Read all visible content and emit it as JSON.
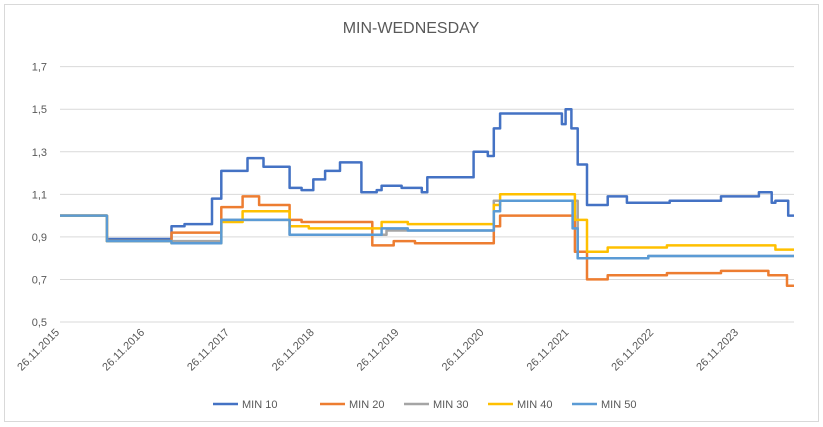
{
  "chart_data": {
    "type": "line",
    "title": "MIN-WEDNESDAY",
    "xlabel": "",
    "ylabel": "",
    "ylim": [
      0.5,
      1.75
    ],
    "y_ticks": [
      "0,5",
      "0,7",
      "0,9",
      "1,1",
      "1,3",
      "1,5",
      "1,7"
    ],
    "x_ticks": [
      "26.11.2015",
      "26.11.2016",
      "26.11.2017",
      "26.11.2018",
      "26.11.2019",
      "26.11.2020",
      "26.11.2021",
      "26.11.2022",
      "26.11.2023"
    ],
    "x_domain": [
      "2015-11-26",
      "2024-07-20"
    ],
    "grid": "horizontal",
    "legend_position": "bottom",
    "series": [
      {
        "name": "MIN 10",
        "color": "#4472c4",
        "points": [
          [
            "2015-11-26",
            1.0
          ],
          [
            "2016-06-15",
            1.0
          ],
          [
            "2016-06-15",
            0.89
          ],
          [
            "2017-03-20",
            0.89
          ],
          [
            "2017-03-20",
            0.95
          ],
          [
            "2017-05-15",
            0.95
          ],
          [
            "2017-05-15",
            0.96
          ],
          [
            "2017-09-10",
            0.96
          ],
          [
            "2017-09-10",
            1.08
          ],
          [
            "2017-10-20",
            1.08
          ],
          [
            "2017-10-20",
            1.21
          ],
          [
            "2018-02-10",
            1.21
          ],
          [
            "2018-02-10",
            1.27
          ],
          [
            "2018-04-20",
            1.27
          ],
          [
            "2018-04-20",
            1.23
          ],
          [
            "2018-08-10",
            1.23
          ],
          [
            "2018-08-10",
            1.13
          ],
          [
            "2018-10-01",
            1.13
          ],
          [
            "2018-10-01",
            1.12
          ],
          [
            "2018-11-20",
            1.12
          ],
          [
            "2018-11-20",
            1.17
          ],
          [
            "2019-01-10",
            1.17
          ],
          [
            "2019-01-10",
            1.21
          ],
          [
            "2019-03-15",
            1.21
          ],
          [
            "2019-03-15",
            1.25
          ],
          [
            "2019-06-15",
            1.25
          ],
          [
            "2019-06-15",
            1.11
          ],
          [
            "2019-08-20",
            1.11
          ],
          [
            "2019-08-20",
            1.12
          ],
          [
            "2019-09-10",
            1.12
          ],
          [
            "2019-09-10",
            1.14
          ],
          [
            "2019-12-05",
            1.14
          ],
          [
            "2019-12-05",
            1.13
          ],
          [
            "2020-03-01",
            1.13
          ],
          [
            "2020-03-01",
            1.11
          ],
          [
            "2020-03-25",
            1.11
          ],
          [
            "2020-03-25",
            1.18
          ],
          [
            "2020-10-10",
            1.18
          ],
          [
            "2020-10-10",
            1.3
          ],
          [
            "2020-12-10",
            1.3
          ],
          [
            "2020-12-10",
            1.28
          ],
          [
            "2021-01-05",
            1.28
          ],
          [
            "2021-01-05",
            1.41
          ],
          [
            "2021-02-01",
            1.41
          ],
          [
            "2021-02-01",
            1.48
          ],
          [
            "2021-10-25",
            1.48
          ],
          [
            "2021-10-25",
            1.43
          ],
          [
            "2021-11-10",
            1.43
          ],
          [
            "2021-11-10",
            1.5
          ],
          [
            "2021-12-05",
            1.5
          ],
          [
            "2021-12-05",
            1.41
          ],
          [
            "2022-01-01",
            1.41
          ],
          [
            "2022-01-01",
            1.24
          ],
          [
            "2022-02-10",
            1.24
          ],
          [
            "2022-02-10",
            1.05
          ],
          [
            "2022-05-10",
            1.05
          ],
          [
            "2022-05-10",
            1.09
          ],
          [
            "2022-08-01",
            1.09
          ],
          [
            "2022-08-01",
            1.06
          ],
          [
            "2023-02-01",
            1.06
          ],
          [
            "2023-02-01",
            1.07
          ],
          [
            "2023-09-10",
            1.07
          ],
          [
            "2023-09-10",
            1.09
          ],
          [
            "2024-02-20",
            1.09
          ],
          [
            "2024-02-20",
            1.11
          ],
          [
            "2024-04-15",
            1.11
          ],
          [
            "2024-04-15",
            1.06
          ],
          [
            "2024-05-01",
            1.06
          ],
          [
            "2024-05-01",
            1.07
          ],
          [
            "2024-06-25",
            1.07
          ],
          [
            "2024-06-25",
            1.0
          ],
          [
            "2024-07-20",
            1.0
          ]
        ]
      },
      {
        "name": "MIN 20",
        "color": "#ed7d31",
        "points": [
          [
            "2015-11-26",
            1.0
          ],
          [
            "2016-06-15",
            1.0
          ],
          [
            "2016-06-15",
            0.88
          ],
          [
            "2017-03-20",
            0.88
          ],
          [
            "2017-03-20",
            0.92
          ],
          [
            "2017-10-20",
            0.92
          ],
          [
            "2017-10-20",
            1.04
          ],
          [
            "2018-01-20",
            1.04
          ],
          [
            "2018-01-20",
            1.09
          ],
          [
            "2018-04-01",
            1.09
          ],
          [
            "2018-04-01",
            1.05
          ],
          [
            "2018-08-10",
            1.05
          ],
          [
            "2018-08-10",
            0.98
          ],
          [
            "2018-10-01",
            0.98
          ],
          [
            "2018-10-01",
            0.97
          ],
          [
            "2019-08-01",
            0.97
          ],
          [
            "2019-08-01",
            0.86
          ],
          [
            "2019-11-01",
            0.86
          ],
          [
            "2019-11-01",
            0.88
          ],
          [
            "2020-02-01",
            0.88
          ],
          [
            "2020-02-01",
            0.87
          ],
          [
            "2021-01-05",
            0.87
          ],
          [
            "2021-01-05",
            0.95
          ],
          [
            "2021-02-01",
            0.95
          ],
          [
            "2021-02-01",
            1.0
          ],
          [
            "2021-12-20",
            1.0
          ],
          [
            "2021-12-20",
            0.83
          ],
          [
            "2022-02-10",
            0.83
          ],
          [
            "2022-02-10",
            0.7
          ],
          [
            "2022-05-10",
            0.7
          ],
          [
            "2022-05-10",
            0.72
          ],
          [
            "2023-01-20",
            0.72
          ],
          [
            "2023-01-20",
            0.73
          ],
          [
            "2023-09-10",
            0.73
          ],
          [
            "2023-09-10",
            0.74
          ],
          [
            "2024-04-01",
            0.74
          ],
          [
            "2024-04-01",
            0.72
          ],
          [
            "2024-06-20",
            0.72
          ],
          [
            "2024-06-20",
            0.67
          ],
          [
            "2024-07-20",
            0.67
          ]
        ]
      },
      {
        "name": "MIN 30",
        "color": "#a5a5a5",
        "points": [
          [
            "2015-11-26",
            1.0
          ],
          [
            "2016-06-15",
            1.0
          ],
          [
            "2016-06-15",
            0.88
          ],
          [
            "2017-10-20",
            0.88
          ],
          [
            "2017-10-20",
            0.98
          ],
          [
            "2018-08-10",
            0.98
          ],
          [
            "2018-08-10",
            0.91
          ],
          [
            "2019-10-01",
            0.91
          ],
          [
            "2019-10-01",
            0.93
          ],
          [
            "2021-01-05",
            0.93
          ],
          [
            "2021-01-05",
            1.07
          ],
          [
            "2022-01-01",
            1.07
          ],
          [
            "2022-01-01",
            0.8
          ],
          [
            "2022-11-01",
            0.8
          ],
          [
            "2022-11-01",
            0.81
          ],
          [
            "2024-07-20",
            0.81
          ]
        ]
      },
      {
        "name": "MIN 40",
        "color": "#ffc000",
        "points": [
          [
            "2015-11-26",
            1.0
          ],
          [
            "2016-06-15",
            1.0
          ],
          [
            "2016-06-15",
            0.88
          ],
          [
            "2017-03-20",
            0.88
          ],
          [
            "2017-03-20",
            0.87
          ],
          [
            "2017-10-20",
            0.87
          ],
          [
            "2017-10-20",
            0.97
          ],
          [
            "2018-01-20",
            0.97
          ],
          [
            "2018-01-20",
            1.02
          ],
          [
            "2018-08-10",
            1.02
          ],
          [
            "2018-08-10",
            0.95
          ],
          [
            "2018-11-01",
            0.95
          ],
          [
            "2018-11-01",
            0.94
          ],
          [
            "2019-09-10",
            0.94
          ],
          [
            "2019-09-10",
            0.97
          ],
          [
            "2020-01-01",
            0.97
          ],
          [
            "2020-01-01",
            0.96
          ],
          [
            "2021-01-05",
            0.96
          ],
          [
            "2021-01-05",
            1.05
          ],
          [
            "2021-02-01",
            1.05
          ],
          [
            "2021-02-01",
            1.1
          ],
          [
            "2021-12-20",
            1.1
          ],
          [
            "2021-12-20",
            0.98
          ],
          [
            "2022-02-10",
            0.98
          ],
          [
            "2022-02-10",
            0.83
          ],
          [
            "2022-05-10",
            0.83
          ],
          [
            "2022-05-10",
            0.85
          ],
          [
            "2023-01-20",
            0.85
          ],
          [
            "2023-01-20",
            0.86
          ],
          [
            "2024-05-01",
            0.86
          ],
          [
            "2024-05-01",
            0.84
          ],
          [
            "2024-07-20",
            0.84
          ]
        ]
      },
      {
        "name": "MIN 50",
        "color": "#5b9bd5",
        "points": [
          [
            "2015-11-26",
            1.0
          ],
          [
            "2016-06-15",
            1.0
          ],
          [
            "2016-06-15",
            0.88
          ],
          [
            "2017-03-20",
            0.88
          ],
          [
            "2017-03-20",
            0.87
          ],
          [
            "2017-10-20",
            0.87
          ],
          [
            "2017-10-20",
            0.98
          ],
          [
            "2018-08-10",
            0.98
          ],
          [
            "2018-08-10",
            0.91
          ],
          [
            "2019-09-10",
            0.91
          ],
          [
            "2019-09-10",
            0.94
          ],
          [
            "2020-01-01",
            0.94
          ],
          [
            "2020-01-01",
            0.93
          ],
          [
            "2021-01-05",
            0.93
          ],
          [
            "2021-01-05",
            1.02
          ],
          [
            "2021-02-01",
            1.02
          ],
          [
            "2021-02-01",
            1.07
          ],
          [
            "2021-12-10",
            1.07
          ],
          [
            "2021-12-10",
            0.94
          ],
          [
            "2022-01-01",
            0.94
          ],
          [
            "2022-01-01",
            0.8
          ],
          [
            "2022-11-01",
            0.8
          ],
          [
            "2022-11-01",
            0.81
          ],
          [
            "2024-07-20",
            0.81
          ]
        ]
      }
    ]
  }
}
